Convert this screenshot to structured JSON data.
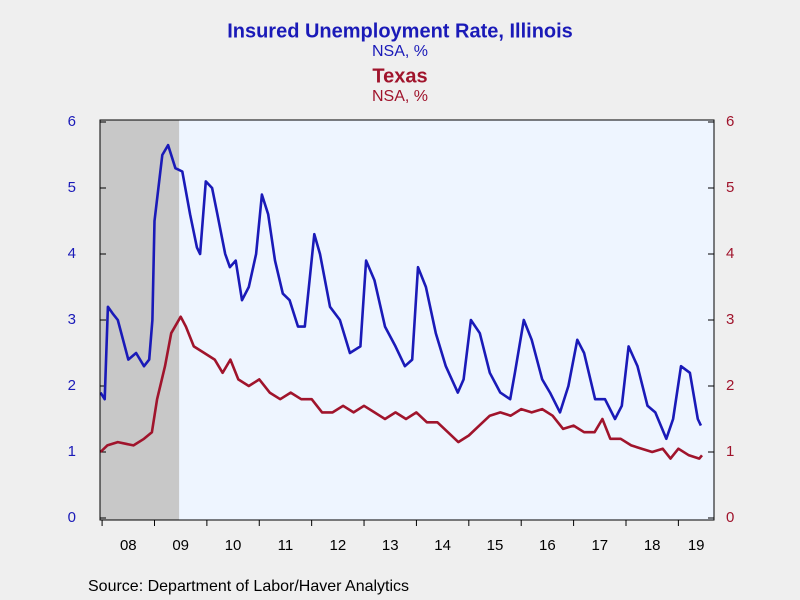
{
  "chart_data": {
    "type": "line",
    "title": "Insured Unemployment Rate, Illinois",
    "subtitle": "NSA, %",
    "title2": "Texas",
    "subtitle2": "NSA, %",
    "source": "Source:  Department of Labor/Haver Analytics",
    "xlim": [
      2007.96,
      2019.68
    ],
    "xticks": [
      {
        "value": 2008,
        "label": "08"
      },
      {
        "value": 2009,
        "label": "09"
      },
      {
        "value": 2010,
        "label": "10"
      },
      {
        "value": 2011,
        "label": "11"
      },
      {
        "value": 2012,
        "label": "12"
      },
      {
        "value": 2013,
        "label": "13"
      },
      {
        "value": 2014,
        "label": "14"
      },
      {
        "value": 2015,
        "label": "15"
      },
      {
        "value": 2016,
        "label": "16"
      },
      {
        "value": 2017,
        "label": "17"
      },
      {
        "value": 2018,
        "label": "18"
      },
      {
        "value": 2019,
        "label": "19"
      }
    ],
    "ylim": [
      0,
      6
    ],
    "yticks": [
      0,
      1,
      2,
      3,
      4,
      5,
      6
    ],
    "y2lim": [
      0,
      6
    ],
    "y2ticks": [
      0,
      1,
      2,
      3,
      4,
      5,
      6
    ],
    "recession": [
      2007.96,
      2009.47
    ],
    "series": [
      {
        "color": "#1a1ab8",
        "x": [
          2007.97,
          2008.05,
          2008.11,
          2008.2,
          2008.3,
          2008.5,
          2008.65,
          2008.8,
          2008.9,
          2008.96,
          2009.0,
          2009.15,
          2009.26,
          2009.4,
          2009.53,
          2009.68,
          2009.81,
          2009.87,
          2009.98,
          2010.1,
          2010.2,
          2010.35,
          2010.44,
          2010.55,
          2010.67,
          2010.8,
          2010.94,
          2011.05,
          2011.17,
          2011.3,
          2011.45,
          2011.58,
          2011.74,
          2011.87,
          2012.05,
          2012.16,
          2012.35,
          2012.54,
          2012.73,
          2012.93,
          2013.04,
          2013.2,
          2013.4,
          2013.6,
          2013.78,
          2013.92,
          2014.03,
          2014.18,
          2014.37,
          2014.56,
          2014.79,
          2014.9,
          2015.04,
          2015.21,
          2015.4,
          2015.6,
          2015.79,
          2015.88,
          2016.05,
          2016.2,
          2016.4,
          2016.55,
          2016.74,
          2016.9,
          2017.07,
          2017.2,
          2017.41,
          2017.6,
          2017.79,
          2017.92,
          2018.05,
          2018.22,
          2018.41,
          2018.56,
          2018.77,
          2018.9,
          2019.05,
          2019.22,
          2019.37,
          2019.43
        ],
        "values": [
          1.9,
          1.8,
          3.2,
          3.1,
          3.0,
          2.4,
          2.5,
          2.3,
          2.4,
          3.0,
          4.5,
          5.5,
          5.65,
          5.3,
          5.25,
          4.6,
          4.1,
          4.0,
          5.1,
          5.0,
          4.6,
          4.0,
          3.8,
          3.9,
          3.3,
          3.5,
          4.0,
          4.9,
          4.6,
          3.9,
          3.4,
          3.3,
          2.9,
          2.9,
          4.3,
          4.0,
          3.2,
          3.0,
          2.5,
          2.6,
          3.9,
          3.6,
          2.9,
          2.6,
          2.3,
          2.4,
          3.8,
          3.5,
          2.8,
          2.3,
          1.9,
          2.1,
          3.0,
          2.8,
          2.2,
          1.9,
          1.8,
          2.2,
          3.0,
          2.7,
          2.1,
          1.9,
          1.6,
          2.0,
          2.7,
          2.5,
          1.8,
          1.8,
          1.5,
          1.7,
          2.6,
          2.3,
          1.7,
          1.6,
          1.2,
          1.5,
          2.3,
          2.2,
          1.5,
          1.4
        ]
      },
      {
        "color": "#a0142c",
        "axis": "y2",
        "x": [
          2007.97,
          2008.1,
          2008.3,
          2008.6,
          2008.8,
          2008.95,
          2009.05,
          2009.2,
          2009.32,
          2009.5,
          2009.6,
          2009.75,
          2009.95,
          2010.15,
          2010.3,
          2010.45,
          2010.6,
          2010.8,
          2011.0,
          2011.2,
          2011.4,
          2011.6,
          2011.8,
          2012.0,
          2012.2,
          2012.4,
          2012.6,
          2012.8,
          2013.0,
          2013.2,
          2013.4,
          2013.6,
          2013.8,
          2014.0,
          2014.2,
          2014.4,
          2014.6,
          2014.8,
          2015.0,
          2015.2,
          2015.4,
          2015.6,
          2015.8,
          2016.0,
          2016.2,
          2016.4,
          2016.6,
          2016.8,
          2017.0,
          2017.2,
          2017.4,
          2017.55,
          2017.7,
          2017.9,
          2018.1,
          2018.3,
          2018.5,
          2018.7,
          2018.85,
          2019.0,
          2019.2,
          2019.4,
          2019.45
        ],
        "values": [
          1.0,
          1.1,
          1.15,
          1.1,
          1.2,
          1.3,
          1.8,
          2.3,
          2.8,
          3.05,
          2.9,
          2.6,
          2.5,
          2.4,
          2.2,
          2.4,
          2.1,
          2.0,
          2.1,
          1.9,
          1.8,
          1.9,
          1.8,
          1.8,
          1.6,
          1.6,
          1.7,
          1.6,
          1.7,
          1.6,
          1.5,
          1.6,
          1.5,
          1.6,
          1.45,
          1.45,
          1.3,
          1.15,
          1.25,
          1.4,
          1.55,
          1.6,
          1.55,
          1.65,
          1.6,
          1.65,
          1.55,
          1.35,
          1.4,
          1.3,
          1.3,
          1.5,
          1.2,
          1.2,
          1.1,
          1.05,
          1.0,
          1.05,
          0.9,
          1.05,
          0.95,
          0.9,
          0.95
        ]
      }
    ]
  }
}
